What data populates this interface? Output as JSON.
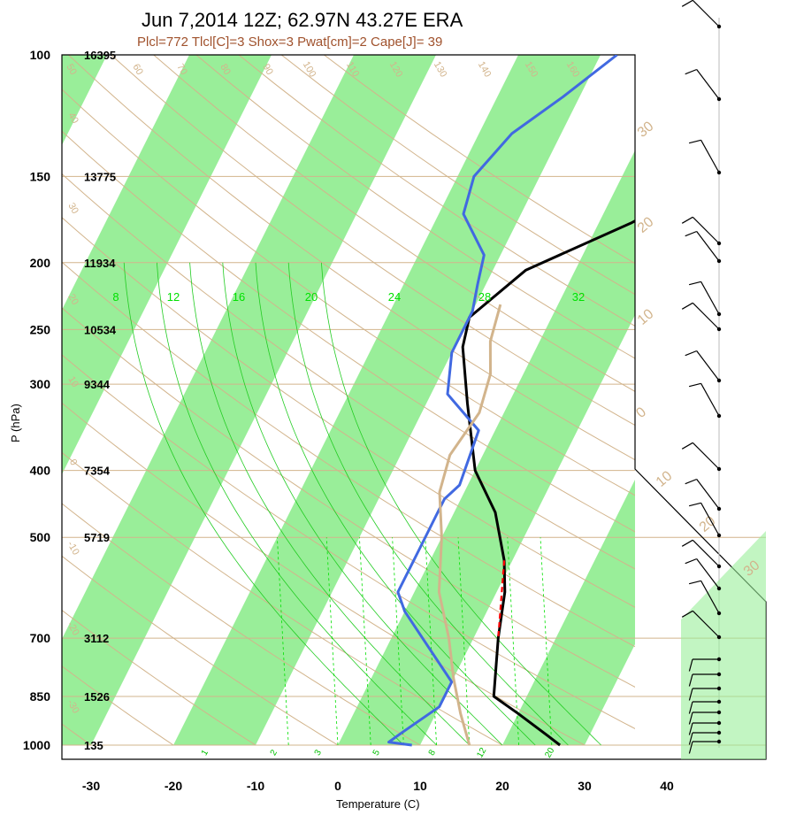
{
  "chart_data": {
    "type": "line",
    "title": "Jun 7,2014 12Z; 62.97N 43.27E ERA",
    "subtitle": "Plcl=772 Tlcl[C]=3 Shox=3 Pwat[cm]=2 Cape[J]= 39",
    "xlabel": "Temperature (C)",
    "ylabel": "P (hPa)",
    "x_ticks": [
      "-30",
      "-20",
      "-10",
      "0",
      "10",
      "20",
      "30",
      "40"
    ],
    "y_ticks": [
      {
        "p": 100,
        "label": "100",
        "height": "16395"
      },
      {
        "p": 150,
        "label": "150",
        "height": "13775"
      },
      {
        "p": 200,
        "label": "200",
        "height": "11934"
      },
      {
        "p": 250,
        "label": "250",
        "height": "10534"
      },
      {
        "p": 300,
        "label": "300",
        "height": "9344"
      },
      {
        "p": 400,
        "label": "400",
        "height": "7354"
      },
      {
        "p": 500,
        "label": "500",
        "height": "5719"
      },
      {
        "p": 700,
        "label": "700",
        "height": "3112"
      },
      {
        "p": 850,
        "label": "850",
        "height": "1526"
      },
      {
        "p": 1000,
        "label": "1000",
        "height": "135"
      }
    ],
    "ylim": [
      100,
      1000
    ],
    "y_scale": "log",
    "xlim": [
      -34,
      36
    ],
    "series": [
      {
        "name": "",
        "color": "#000000",
        "points": [
          [
            27,
            1000
          ],
          [
            25,
            970
          ],
          [
            20,
            900
          ],
          [
            16,
            850
          ],
          [
            13,
            700
          ],
          [
            11,
            600
          ],
          [
            9,
            540
          ],
          [
            5,
            460
          ],
          [
            0,
            400
          ],
          [
            -5,
            320
          ],
          [
            -9,
            265
          ],
          [
            -10,
            240
          ],
          [
            -6,
            205
          ],
          [
            4,
            175
          ],
          [
            10,
            155
          ],
          [
            15,
            130
          ],
          [
            23,
            103
          ]
        ]
      },
      {
        "name": "",
        "color": "#4169e1",
        "points": [
          [
            9,
            1000
          ],
          [
            6,
            990
          ],
          [
            7,
            960
          ],
          [
            10,
            880
          ],
          [
            10,
            810
          ],
          [
            5,
            720
          ],
          [
            0,
            640
          ],
          [
            -2,
            600
          ],
          [
            -2,
            520
          ],
          [
            -2,
            460
          ],
          [
            -2,
            440
          ],
          [
            -1,
            420
          ],
          [
            -2,
            350
          ],
          [
            -8,
            310
          ],
          [
            -10,
            270
          ],
          [
            -10,
            235
          ],
          [
            -11,
            215
          ],
          [
            -12,
            195
          ],
          [
            -17,
            170
          ],
          [
            -18,
            150
          ],
          [
            -16,
            130
          ],
          [
            -12,
            115
          ],
          [
            -8,
            100
          ]
        ]
      },
      {
        "name": "",
        "color": "#d2b48c",
        "points": [
          [
            16,
            1000
          ],
          [
            13,
            900
          ],
          [
            10,
            800
          ],
          [
            7,
            700
          ],
          [
            3,
            600
          ],
          [
            0,
            500
          ],
          [
            -3,
            430
          ],
          [
            -4,
            380
          ],
          [
            -3,
            330
          ],
          [
            -4,
            290
          ],
          [
            -6,
            260
          ],
          [
            -7,
            230
          ]
        ]
      },
      {
        "name": "",
        "color": "#ff0000",
        "dashed": true,
        "points": [
          [
            9,
            540
          ],
          [
            13,
            700
          ]
        ]
      }
    ],
    "legend": "none",
    "grid": true,
    "annotations": {
      "mixing_ratio_labels": [
        "8",
        "12",
        "16",
        "20",
        "24",
        "28",
        "32"
      ],
      "mixing_ratio_bottom_labels": [
        "1",
        "2",
        "3",
        "5",
        "8",
        "12",
        "20"
      ],
      "dry_adiabat_labels_top": [
        "50",
        "60",
        "70",
        "80",
        "90",
        "100",
        "110",
        "120",
        "130",
        "140",
        "150",
        "160"
      ],
      "dry_adiabat_labels_left": [
        "40",
        "30",
        "20",
        "10",
        "0",
        "-10",
        "-20",
        "-30"
      ],
      "theta_labels_right": [
        "30",
        "20",
        "10",
        "0",
        "10",
        "20",
        "30"
      ],
      "wind_barbs": "right-column"
    },
    "colors": {
      "isotherm_band": "#99ee99",
      "grid": "#d2b48c",
      "mixing": "#00e000",
      "moist": "#22cc22"
    }
  }
}
